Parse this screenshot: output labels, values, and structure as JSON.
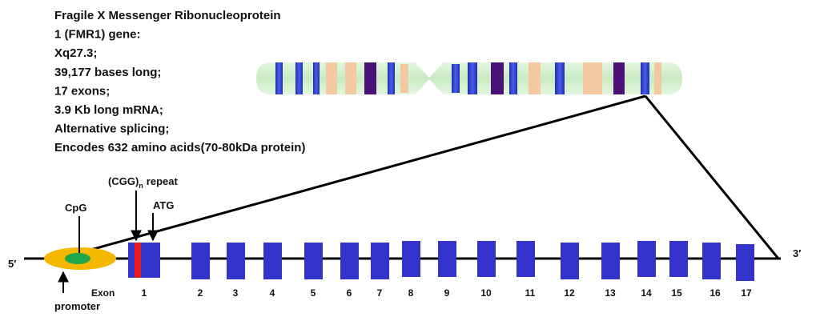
{
  "info_lines": [
    "Fragile X Messenger Ribonucleoprotein",
    "1 (FMR1) gene:",
    "Xq27.3;",
    "39,177 bases long;",
    "17 exons;",
    "3.9 Kb long mRNA;",
    "Alternative splicing;",
    "Encodes 632 amino acids(70-80kDa protein)"
  ],
  "labels": {
    "cgg": "(CGG)",
    "cgg_sub": "n",
    "cgg_rest": "repeat",
    "atg": "ATG",
    "cpg": "CpG",
    "promoter": "promoter",
    "exon": "Exon",
    "five_prime": "5′",
    "three_prime": "3′"
  },
  "exons": [
    "1",
    "2",
    "3",
    "4",
    "5",
    "6",
    "7",
    "8",
    "9",
    "10",
    "11",
    "12",
    "13",
    "14",
    "15",
    "16",
    "17"
  ]
}
